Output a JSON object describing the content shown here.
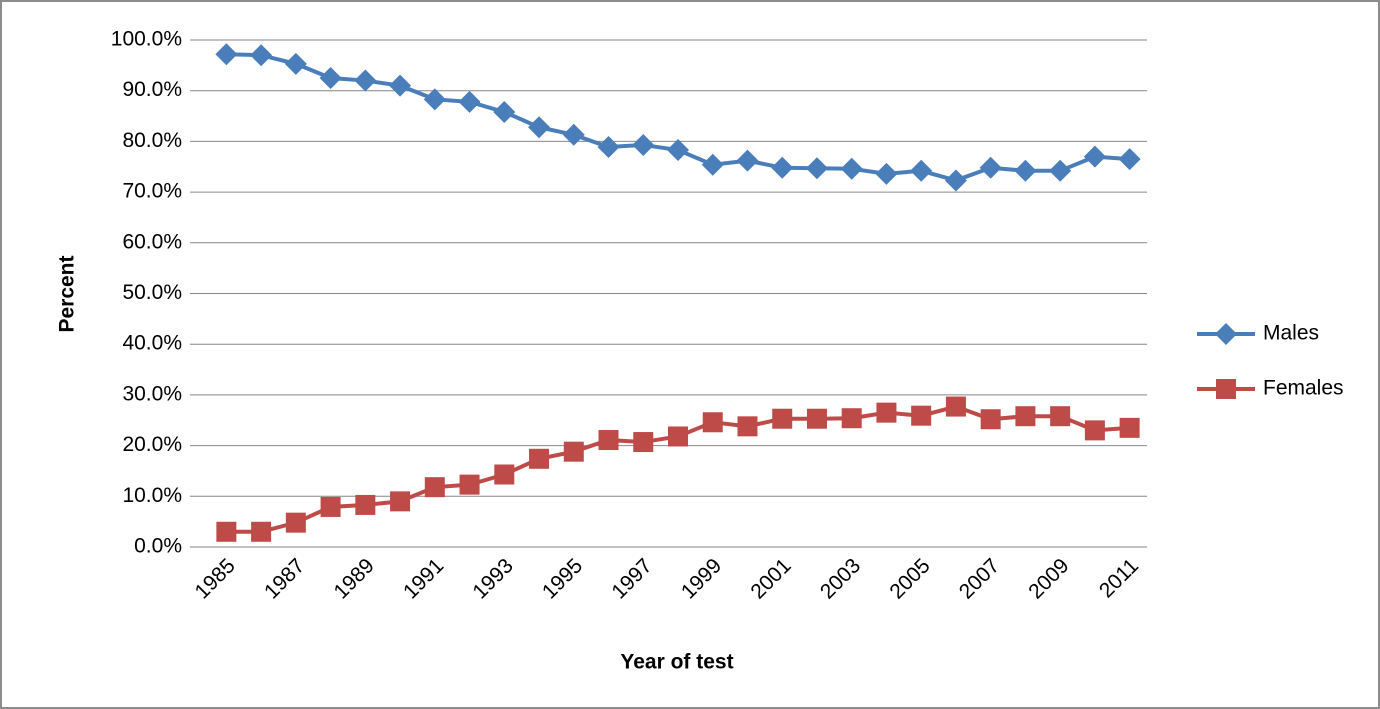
{
  "chart_data": {
    "type": "line",
    "x_label": "Year of test",
    "y_label": "Percent",
    "categories": [
      "1985",
      null,
      "1987",
      null,
      "1989",
      null,
      "1991",
      null,
      "1993",
      null,
      "1995",
      null,
      "1997",
      null,
      "1999",
      null,
      "2001",
      null,
      "2003",
      null,
      "2005",
      null,
      "2007",
      null,
      "2009",
      null,
      "2011"
    ],
    "series": [
      {
        "name": "Males",
        "color": "#4a7ebb",
        "marker": "diamond",
        "values": [
          97.2,
          97.0,
          95.3,
          92.5,
          92.0,
          91.0,
          88.3,
          87.8,
          85.8,
          82.8,
          81.3,
          78.9,
          79.3,
          78.3,
          75.4,
          76.2,
          74.8,
          74.7,
          74.6,
          73.6,
          74.2,
          72.3,
          74.8,
          74.2,
          74.2,
          77.0,
          76.5
        ]
      },
      {
        "name": "Females",
        "color": "#be4b48",
        "marker": "square",
        "values": [
          3.0,
          3.0,
          4.8,
          7.9,
          8.3,
          9.0,
          11.8,
          12.3,
          14.3,
          17.4,
          18.8,
          21.1,
          20.7,
          21.8,
          24.6,
          23.8,
          25.3,
          25.3,
          25.4,
          26.5,
          25.9,
          27.7,
          25.2,
          25.8,
          25.8,
          23.0,
          23.5
        ]
      }
    ],
    "ylim": [
      0,
      100
    ],
    "yticks": [
      {
        "value": 0,
        "label": "0.0%"
      },
      {
        "value": 10,
        "label": "10.0%"
      },
      {
        "value": 20,
        "label": "20.0%"
      },
      {
        "value": 30,
        "label": "30.0%"
      },
      {
        "value": 40,
        "label": "40.0%"
      },
      {
        "value": 50,
        "label": "50.0%"
      },
      {
        "value": 60,
        "label": "60.0%"
      },
      {
        "value": 70,
        "label": "70.0%"
      },
      {
        "value": 80,
        "label": "80.0%"
      },
      {
        "value": 90,
        "label": "90.0%"
      },
      {
        "value": 100,
        "label": "100.0%"
      }
    ],
    "grid": true,
    "legend": "right"
  }
}
